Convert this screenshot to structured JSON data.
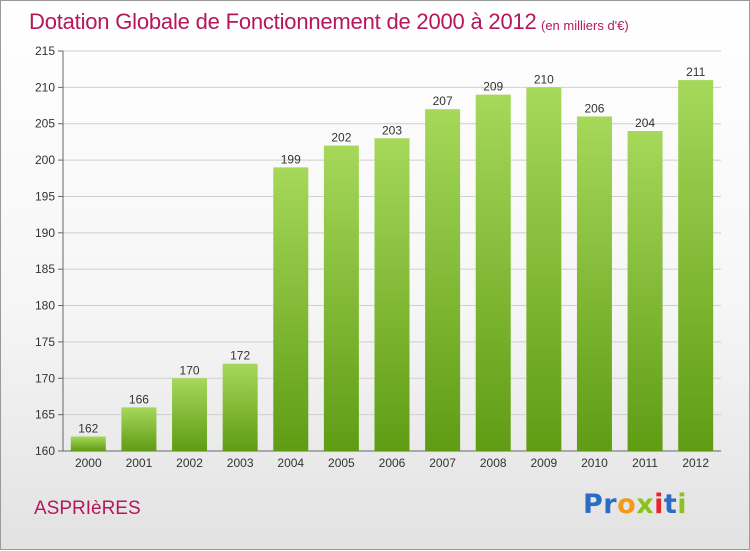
{
  "header": {
    "title": "Dotation Globale de Fonctionnement de 2000 à 2012",
    "unit": "(en milliers d'€)"
  },
  "footer": {
    "commune": "ASPRIèRES",
    "logo": [
      "P",
      "r",
      "o",
      "x",
      "i",
      "t",
      "i"
    ]
  },
  "colors": {
    "title": "#b5165e",
    "bar_light": "#a6d85a",
    "bar_dark": "#5f9c14",
    "grid": "#cfcfcf",
    "logo": [
      "#2b6cc4",
      "#2b6cc4",
      "#f39a18",
      "#8cc21e",
      "#e8242c",
      "#2b6cc4",
      "#8cc21e"
    ]
  },
  "chart_data": {
    "type": "bar",
    "title": "Dotation Globale de Fonctionnement de 2000 à 2012",
    "unit": "(en milliers d'€)",
    "categories": [
      "2000",
      "2001",
      "2002",
      "2003",
      "2004",
      "2005",
      "2006",
      "2007",
      "2008",
      "2009",
      "2010",
      "2011",
      "2012"
    ],
    "values": [
      162,
      166,
      170,
      172,
      199,
      202,
      203,
      207,
      209,
      210,
      206,
      204,
      211
    ],
    "ylim": [
      160,
      215
    ],
    "yticks": [
      160,
      165,
      170,
      175,
      180,
      185,
      190,
      195,
      200,
      205,
      210,
      215
    ],
    "grid": true,
    "legend": "none"
  }
}
